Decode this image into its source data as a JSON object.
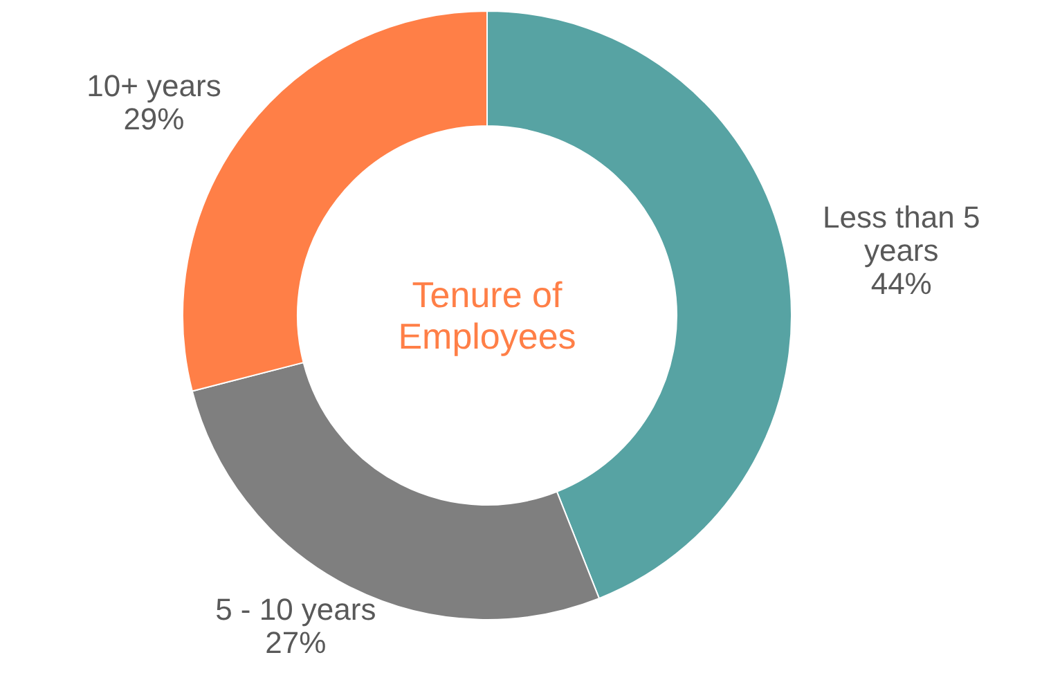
{
  "chart_data": {
    "type": "donut",
    "title": "Tenure of Employees",
    "categories": [
      "Less than 5 years",
      "5 - 10 years",
      "10+ years"
    ],
    "values": [
      44,
      27,
      29
    ],
    "colors": [
      "#57a3a3",
      "#7f7f7f",
      "#ff7f47"
    ],
    "value_labels": [
      "44%",
      "27%",
      "29%"
    ]
  }
}
